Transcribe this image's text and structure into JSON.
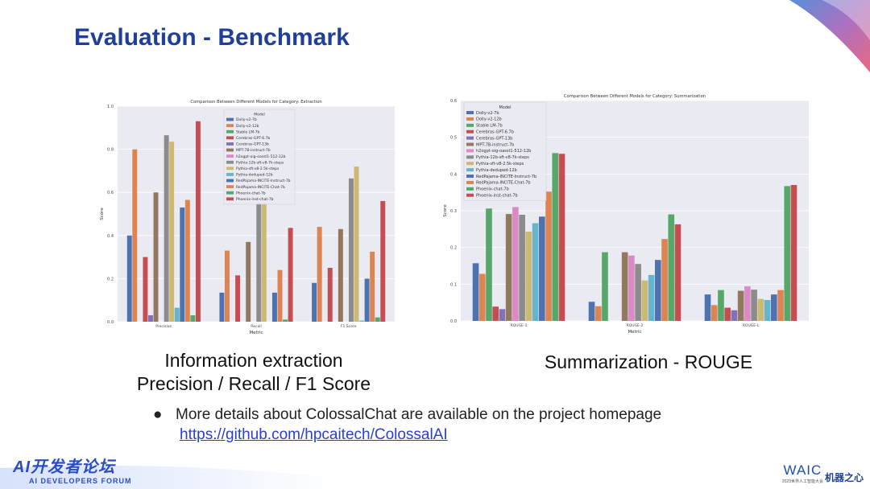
{
  "slide": {
    "title": "Evaluation - Benchmark",
    "caption_left_1": "Information extraction",
    "caption_left_2": "Precision / Recall / F1 Score",
    "caption_right": "Summarization - ROUGE",
    "bullet_text": "More details about ColossalChat are available on the project homepage",
    "bullet_link": "https://github.com/hpcaitech/ColossalAI",
    "footer_logo": "AI开发者论坛",
    "footer_logo_sub": "AI DEVELOPERS FORUM",
    "waic_logo": "WAIC",
    "waic_logo_sub": "2023世界人工智能大会",
    "jq_logo": "机器之心"
  },
  "colors": {
    "title": "#1f3f9a",
    "link": "#2a3fd0",
    "plot_bg": "#eaeaf2",
    "palette": [
      "#4c72b0",
      "#dd8452",
      "#55a868",
      "#c44e52",
      "#8172b3",
      "#937860",
      "#da8bc3",
      "#8c8c8c",
      "#ccb974",
      "#64b5cd",
      "#4c72b0",
      "#dd8452",
      "#55a868",
      "#c44e52"
    ]
  },
  "chart_data": [
    {
      "type": "bar",
      "title": "Comparison Between Different Models for Category: Extraction",
      "xlabel": "Metric",
      "ylabel": "Score",
      "categories": [
        "Precision",
        "Recall",
        "F1 Score"
      ],
      "ylim": [
        0,
        1.0
      ],
      "yticks": [
        "0.0",
        "0.2",
        "0.4",
        "0.6",
        "0.8",
        "1.0"
      ],
      "legend_title": "Model",
      "legend_position": "top-center",
      "grid": true,
      "series": [
        {
          "name": "Dolly-v2-7b",
          "values": [
            0.4,
            0.135,
            0.18
          ]
        },
        {
          "name": "Dolly-v2-12b",
          "values": [
            0.8,
            0.33,
            0.44
          ]
        },
        {
          "name": "Stable LM-7b",
          "values": [
            0.0,
            0.0,
            0.0
          ]
        },
        {
          "name": "Cerebras-GPT-6.7b",
          "values": [
            0.3,
            0.215,
            0.25
          ]
        },
        {
          "name": "Cerebras-GPT-13b",
          "values": [
            0.03,
            0.0,
            0.0
          ]
        },
        {
          "name": "MPT-7B-instruct-7b",
          "values": [
            0.6,
            0.37,
            0.43
          ]
        },
        {
          "name": "h2ogpt-oig-oasst1-512-12b",
          "values": [
            0.0,
            0.0,
            0.0
          ]
        },
        {
          "name": "Pythia-12b-sft-v8-7k-steps",
          "values": [
            0.865,
            0.55,
            0.665
          ]
        },
        {
          "name": "Pythia-sft-v8-2.5k-steps",
          "values": [
            0.835,
            0.55,
            0.72
          ]
        },
        {
          "name": "Pythia-deduped-12b",
          "values": [
            0.065,
            0.0,
            0.005
          ]
        },
        {
          "name": "RedPajama-INCITE-Instruct-7b",
          "values": [
            0.53,
            0.135,
            0.2
          ]
        },
        {
          "name": "RedPajama-INCITE-Chat-7b",
          "values": [
            0.565,
            0.24,
            0.325
          ]
        },
        {
          "name": "Phoenix-chat-7b",
          "values": [
            0.03,
            0.01,
            0.02
          ]
        },
        {
          "name": "Phoenix-inst-chat-7b",
          "values": [
            0.93,
            0.435,
            0.56
          ]
        }
      ]
    },
    {
      "type": "bar",
      "title": "Comparison Between Different Models for Category: Summarization",
      "xlabel": "Metric",
      "ylabel": "Score",
      "categories": [
        "ROUGE-1",
        "ROUGE-2",
        "ROUGE-L"
      ],
      "ylim": [
        0,
        0.6
      ],
      "yticks": [
        "0.0",
        "0.1",
        "0.2",
        "0.3",
        "0.4",
        "0.5",
        "0.6"
      ],
      "legend_title": "Model",
      "legend_position": "top-left",
      "grid": true,
      "series": [
        {
          "name": "Dolly-v2-7b",
          "values": [
            0.157,
            0.052,
            0.072
          ]
        },
        {
          "name": "Dolly-v2-12b",
          "values": [
            0.128,
            0.04,
            0.043
          ]
        },
        {
          "name": "Stable LM-7b",
          "values": [
            0.306,
            0.187,
            0.084
          ]
        },
        {
          "name": "Cerebras-GPT-6.7b",
          "values": [
            0.039,
            0.0,
            0.036
          ]
        },
        {
          "name": "Cerebras-GPT-13b",
          "values": [
            0.032,
            0.0,
            0.029
          ]
        },
        {
          "name": "MPT-7B-instruct-7b",
          "values": [
            0.291,
            0.187,
            0.082
          ]
        },
        {
          "name": "h2ogpt-oig-oasst1-512-12b",
          "values": [
            0.31,
            0.178,
            0.094
          ]
        },
        {
          "name": "Pythia-12b-sft-v8-7k-steps",
          "values": [
            0.289,
            0.155,
            0.085
          ]
        },
        {
          "name": "Pythia-sft-v8-2.5k-steps",
          "values": [
            0.243,
            0.11,
            0.06
          ]
        },
        {
          "name": "Pythia-deduped-12b",
          "values": [
            0.266,
            0.125,
            0.057
          ]
        },
        {
          "name": "RedPajama-INCITE-Instruct-7b",
          "values": [
            0.284,
            0.166,
            0.072
          ]
        },
        {
          "name": "RedPajama-INCITE-Chat-7b",
          "values": [
            0.352,
            0.223,
            0.084
          ]
        },
        {
          "name": "Phoenix-chat-7b",
          "values": [
            0.457,
            0.29,
            0.367
          ]
        },
        {
          "name": "Phoenix-inst-chat-7b",
          "values": [
            0.455,
            0.263,
            0.37
          ]
        }
      ]
    }
  ]
}
